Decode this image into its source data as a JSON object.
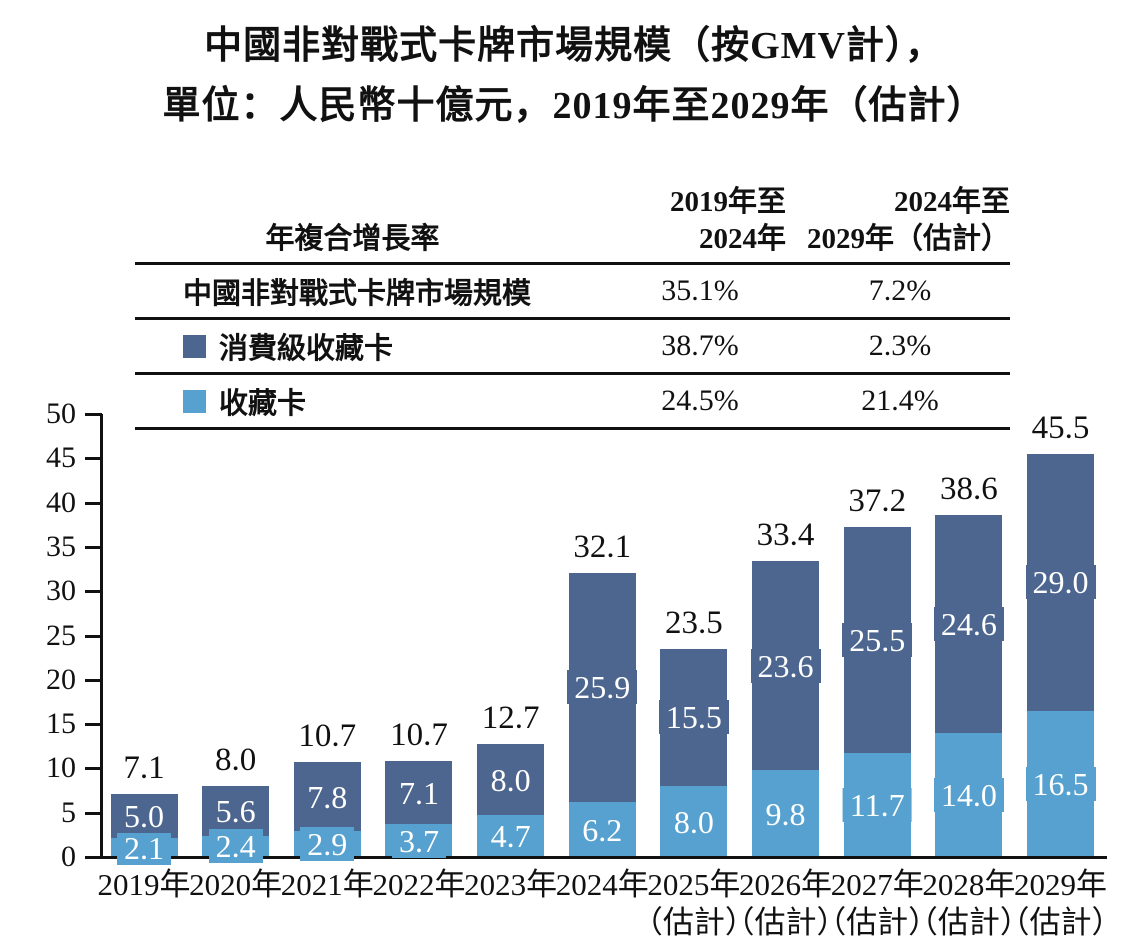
{
  "title": {
    "line1": "中國非對戰式卡牌市場規模（按GMV計），",
    "line2": "單位：人民幣十億元，2019年至2029年（估計）"
  },
  "colors": {
    "dark_blue": "#4d6690",
    "light_blue": "#56a1cf",
    "axis": "#111111"
  },
  "cagr_table": {
    "header": {
      "label": "年複合增長率",
      "col_2019_2024": "2019年至\n2024年",
      "col_2024_2029": "2024年至\n2029年（估計）"
    },
    "rows": [
      {
        "label": "中國非對戰式卡牌市場規模",
        "swatch": "",
        "cagr_2019_2024": "35.1%",
        "cagr_2024_2029": "7.2%"
      },
      {
        "label": "消費級收藏卡",
        "swatch": "dark_blue",
        "cagr_2019_2024": "38.7%",
        "cagr_2024_2029": "2.3%"
      },
      {
        "label": "收藏卡",
        "swatch": "light_blue",
        "cagr_2019_2024": "24.5%",
        "cagr_2024_2029": "21.4%"
      }
    ]
  },
  "chart_data": {
    "type": "bar",
    "stacked": true,
    "title": "中國非對戰式卡牌市場規模（按GMV計），單位：人民幣十億元，2019年至2029年（估計）",
    "categories": [
      "2019年",
      "2020年",
      "2021年",
      "2022年",
      "2023年",
      "2024年",
      "2025年",
      "2026年",
      "2027年",
      "2028年",
      "2029年"
    ],
    "category_sublabels": [
      "",
      "",
      "",
      "",
      "",
      "",
      "（估計）",
      "（估計）",
      "（估計）",
      "（估計）",
      "（估計）"
    ],
    "series": [
      {
        "name": "收藏卡",
        "color_key": "light_blue",
        "values": [
          2.1,
          2.4,
          2.9,
          3.7,
          4.7,
          6.2,
          8.0,
          9.8,
          11.7,
          14.0,
          16.5
        ]
      },
      {
        "name": "消費級收藏卡",
        "color_key": "dark_blue",
        "values": [
          5.0,
          5.6,
          7.8,
          7.1,
          8.0,
          25.9,
          15.5,
          23.6,
          25.5,
          24.6,
          29.0
        ]
      }
    ],
    "totals": [
      7.1,
      8.0,
      10.7,
      10.7,
      12.7,
      32.1,
      23.5,
      33.4,
      37.2,
      38.6,
      45.5
    ],
    "xlabel": "",
    "ylabel": "",
    "ylim": [
      0,
      50
    ],
    "yticks": [
      0,
      5,
      10,
      15,
      20,
      25,
      30,
      35,
      40,
      45,
      50
    ],
    "grid": false,
    "legend_position": "in-table"
  }
}
